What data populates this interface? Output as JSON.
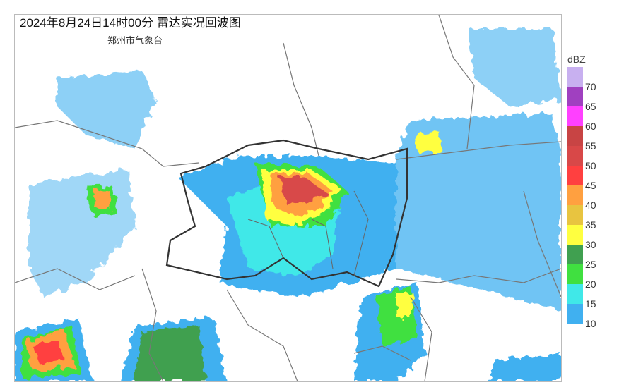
{
  "title": "2024年8月24日14时00分 雷达实况回波图",
  "subtitle": "郑州市气象台",
  "legend": {
    "unit": "dBZ",
    "bins": [
      {
        "min": 70,
        "color": "#c8b0f0"
      },
      {
        "min": 65,
        "color": "#a040c0",
        "label": "70"
      },
      {
        "min": 60,
        "color": "#ff40ff",
        "label": "65"
      },
      {
        "min": 55,
        "color": "#c84444",
        "label": "60"
      },
      {
        "min": 50,
        "color": "#d84848",
        "label": "55"
      },
      {
        "min": 45,
        "color": "#ff4040",
        "label": "50"
      },
      {
        "min": 40,
        "color": "#ffa040",
        "label": "45"
      },
      {
        "min": 35,
        "color": "#e8c440",
        "label": "40"
      },
      {
        "min": 30,
        "color": "#ffff40",
        "label": "35"
      },
      {
        "min": 25,
        "color": "#40a050",
        "label": "30"
      },
      {
        "min": 20,
        "color": "#40e040",
        "label": "25"
      },
      {
        "min": 15,
        "color": "#40e8e8",
        "label": "20"
      },
      {
        "min": 10,
        "color": "#40b0f0",
        "label": "15"
      }
    ],
    "bottom_label": "10"
  }
}
